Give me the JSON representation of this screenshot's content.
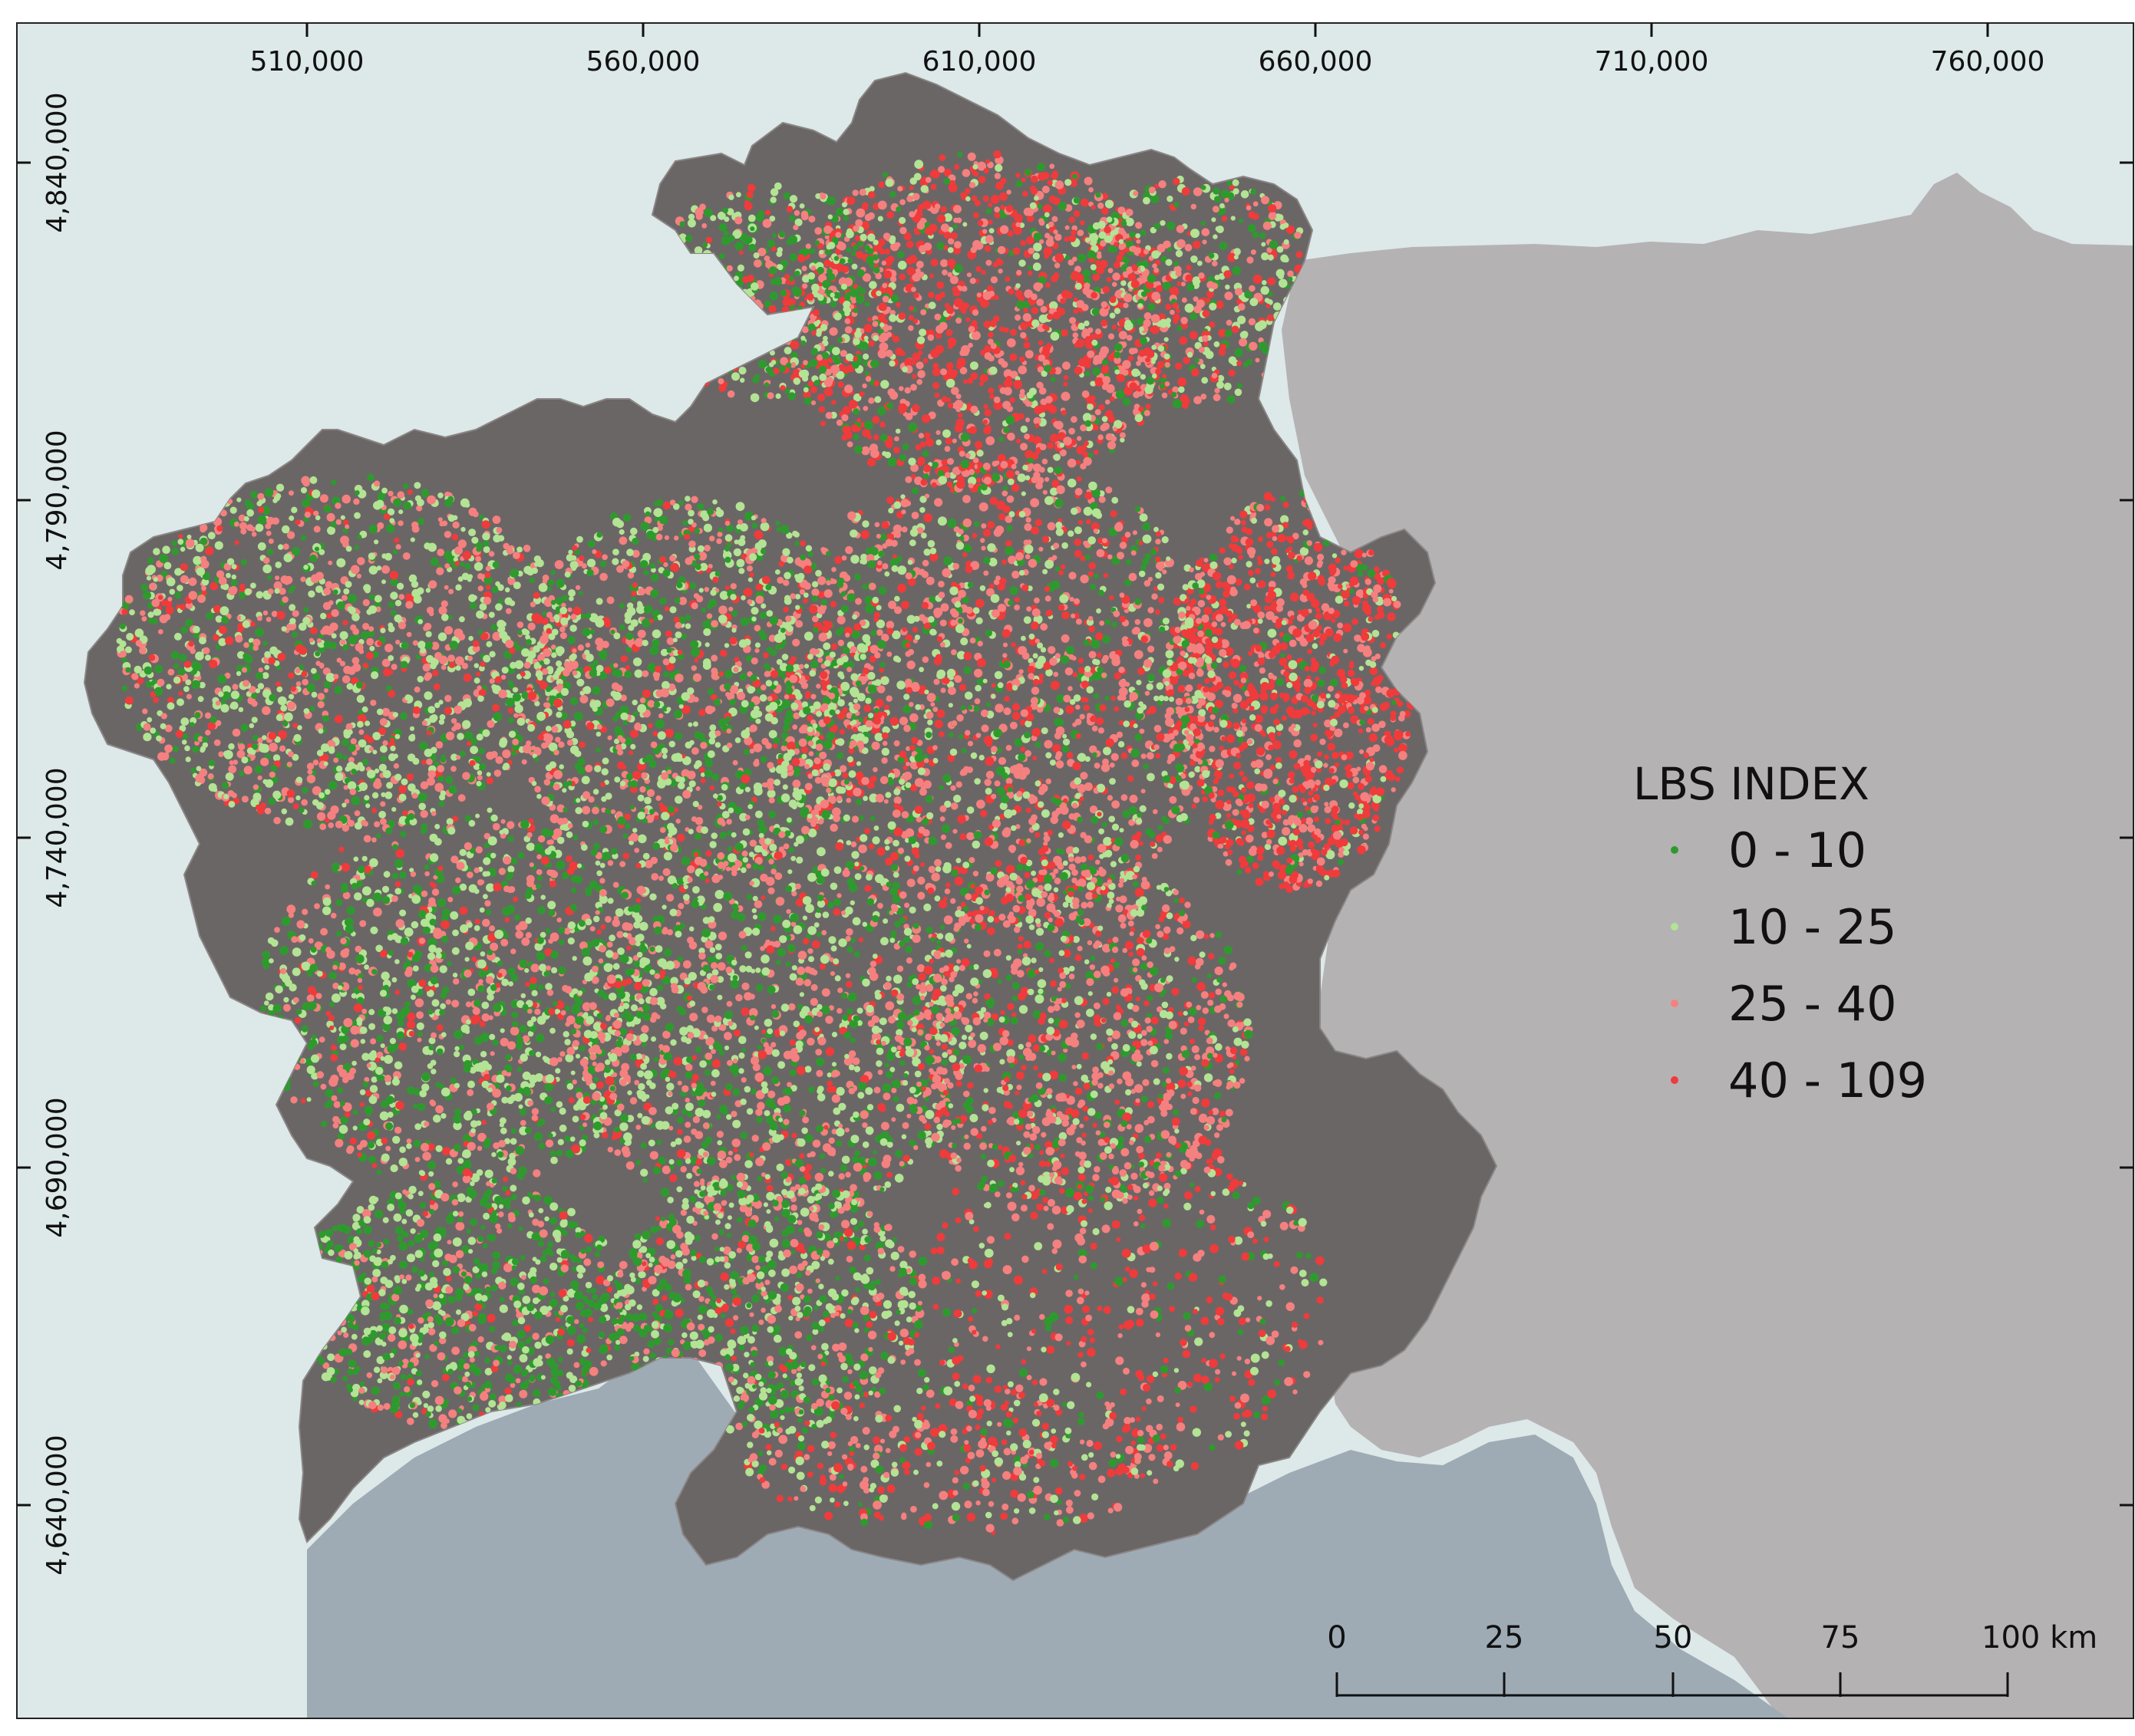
{
  "map": {
    "x_ticks": [
      "510,000",
      "560,000",
      "610,000",
      "660,000",
      "710,000",
      "760,000"
    ],
    "y_ticks": [
      "4,840,000",
      "4,790,000",
      "4,740,000",
      "4,690,000",
      "4,640,000"
    ],
    "legend": {
      "title": "LBS INDEX",
      "classes": [
        {
          "label": "0 - 10",
          "color": "#2e9a2e"
        },
        {
          "label": "10 - 25",
          "color": "#b3e394"
        },
        {
          "label": "25 - 40",
          "color": "#f58080"
        },
        {
          "label": "40 - 109",
          "color": "#ef3b3b"
        }
      ]
    },
    "scale_bar": {
      "labels": [
        "0",
        "25",
        "50",
        "75",
        "100 km"
      ]
    },
    "colors": {
      "sea": "#dde8e8",
      "land_region": "#6b6666",
      "neighbor_land": "#b5b2b4",
      "southern_sea": "#9eabb5"
    }
  }
}
